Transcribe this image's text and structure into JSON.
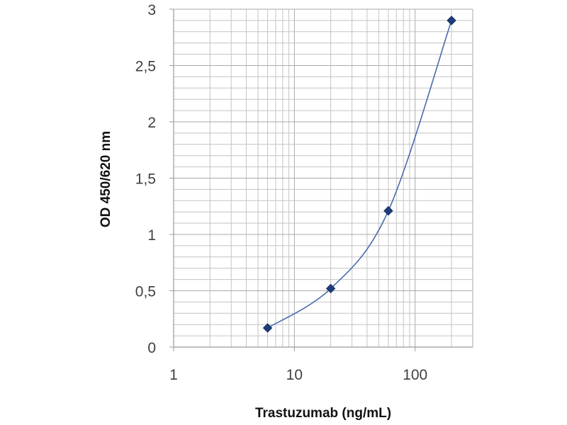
{
  "chart_data": {
    "type": "scatter",
    "xlabel": "Trastuzumab (ng/mL)",
    "ylabel": "OD 450/620 nm",
    "x_scale": "log",
    "xlim": [
      1,
      300
    ],
    "ylim": [
      0,
      3
    ],
    "x_ticks": [
      1,
      10,
      100
    ],
    "x_tick_labels": [
      "1",
      "10",
      "100"
    ],
    "y_ticks": [
      0,
      0.5,
      1,
      1.5,
      2,
      2.5,
      3
    ],
    "y_tick_labels": [
      "0",
      "0,5",
      "1",
      "1,5",
      "2",
      "2,5",
      "3"
    ],
    "grid": true,
    "line": "smoothed",
    "series": [
      {
        "x": [
          6,
          20,
          60,
          200
        ],
        "y": [
          0.17,
          0.52,
          1.21,
          2.9
        ],
        "color": "#4a6cad",
        "marker": "diamond",
        "marker_color": "#1f3d7a"
      }
    ]
  }
}
